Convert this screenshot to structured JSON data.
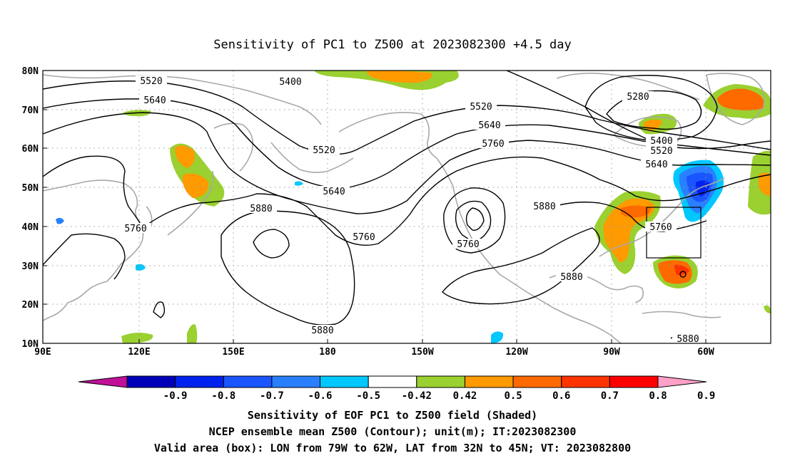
{
  "title": "Sensitivity of PC1 to Z500 at 2023082300 +4.5 day",
  "lon_labels": [
    "90E",
    "120E",
    "150E",
    "180",
    "150W",
    "120W",
    "90W",
    "60W"
  ],
  "lat_labels": [
    "80N",
    "70N",
    "60N",
    "50N",
    "40N",
    "30N",
    "20N",
    "10N"
  ],
  "contour_labels": [
    "5520",
    "5640",
    "5400",
    "5520",
    "5640",
    "5760",
    "5280",
    "5400",
    "5520",
    "5640",
    "5520",
    "5640",
    "5880",
    "5760",
    "5760",
    "5880",
    "5760",
    "5880",
    "5880",
    "5880"
  ],
  "colorbar": {
    "ticks": [
      "-0.9",
      "-0.8",
      "-0.7",
      "-0.6",
      "-0.5",
      "-0.42",
      "0.42",
      "0.5",
      "0.6",
      "0.7",
      "0.8",
      "0.9"
    ],
    "colors": [
      "#c01098",
      "#0000b8",
      "#0022ee",
      "#1a55ff",
      "#2a7fff",
      "#00c8ff",
      "#ffffff",
      "#9ad030",
      "#ff9a00",
      "#ff6a00",
      "#ff3300",
      "#ff0000",
      "#ffa0c8"
    ]
  },
  "caption": [
    "Sensitivity of EOF PC1 to Z500 field (Shaded)",
    "NCEP ensemble mean Z500 (Contour); unit(m); IT:2023082300",
    "Valid area (box): LON from 79W to 62W, LAT from 32N to 45N; VT: 2023082800"
  ],
  "map_data": {
    "type": "contour-map",
    "lon_range": [
      "90E",
      "45W"
    ],
    "lat_range": [
      "10N",
      "80N"
    ],
    "valid_box": {
      "lon": [
        "79W",
        "62W"
      ],
      "lat": [
        "32N",
        "45N"
      ]
    },
    "contour_levels": [
      5280,
      5400,
      5520,
      5640,
      5760,
      5880
    ],
    "grid": true
  }
}
